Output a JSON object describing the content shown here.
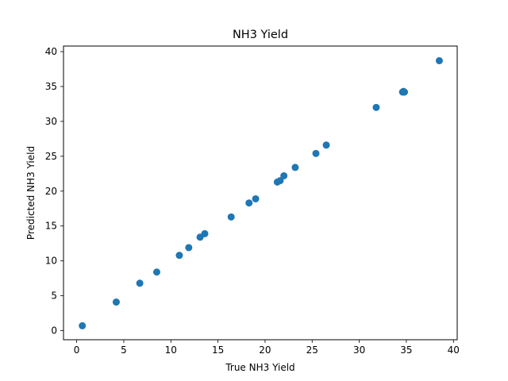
{
  "chart_data": {
    "type": "scatter",
    "title": "NH3 Yield",
    "xlabel": "True NH3 Yield",
    "ylabel": "Predicted NH3 Yield",
    "xlim": [
      -1.4,
      40.4
    ],
    "ylim": [
      -1.3,
      40.8
    ],
    "xticks": [
      0,
      5,
      10,
      15,
      20,
      25,
      30,
      35,
      40
    ],
    "yticks": [
      0,
      5,
      10,
      15,
      20,
      25,
      30,
      35,
      40
    ],
    "grid": false,
    "marker_color": "#1f77b4",
    "points": [
      {
        "x": 0.6,
        "y": 0.7
      },
      {
        "x": 4.2,
        "y": 4.1
      },
      {
        "x": 6.7,
        "y": 6.8
      },
      {
        "x": 8.5,
        "y": 8.4
      },
      {
        "x": 10.9,
        "y": 10.8
      },
      {
        "x": 11.9,
        "y": 11.9
      },
      {
        "x": 13.1,
        "y": 13.4
      },
      {
        "x": 13.6,
        "y": 13.9
      },
      {
        "x": 16.4,
        "y": 16.3
      },
      {
        "x": 18.3,
        "y": 18.3
      },
      {
        "x": 19.0,
        "y": 18.9
      },
      {
        "x": 21.3,
        "y": 21.3
      },
      {
        "x": 21.6,
        "y": 21.5
      },
      {
        "x": 22.0,
        "y": 22.2
      },
      {
        "x": 23.2,
        "y": 23.4
      },
      {
        "x": 25.4,
        "y": 25.4
      },
      {
        "x": 26.5,
        "y": 26.6
      },
      {
        "x": 31.8,
        "y": 32.0
      },
      {
        "x": 34.6,
        "y": 34.2
      },
      {
        "x": 34.7,
        "y": 34.3
      },
      {
        "x": 34.8,
        "y": 34.2
      },
      {
        "x": 38.5,
        "y": 38.7
      }
    ]
  }
}
